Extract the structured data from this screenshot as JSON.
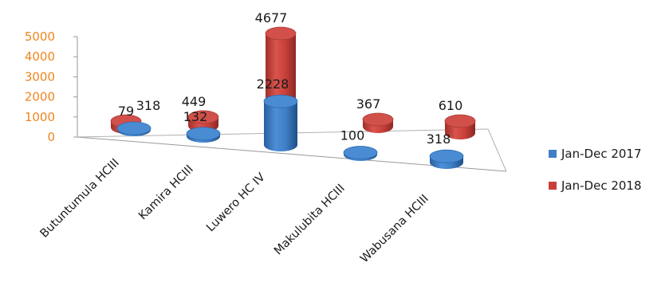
{
  "chart_data": {
    "type": "bar",
    "style": "3d-cylinder",
    "categories": [
      "Butuntumula HCIII",
      "Kamira HCIII",
      "Luwero HC IV",
      "Makulubita HCIII",
      "Wabusana HCIII"
    ],
    "series": [
      {
        "name": "Jan-Dec 2017",
        "color": "#3f7fc6",
        "values": [
          79,
          132,
          2228,
          100,
          318
        ]
      },
      {
        "name": "Jan-Dec 2018",
        "color": "#c8403a",
        "values": [
          318,
          449,
          4677,
          367,
          610
        ]
      }
    ],
    "ylim": [
      0,
      5000
    ],
    "yticks": [
      "0",
      "1000",
      "2000",
      "3000",
      "4000",
      "5000"
    ],
    "legend_position": "right",
    "grid": false
  }
}
